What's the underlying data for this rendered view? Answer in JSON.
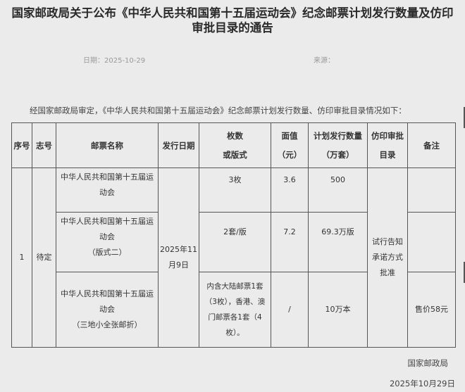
{
  "title": "国家邮政局关于公布《中华人民共和国第十五届运动会》纪念邮票计划发行数量及仿印审批目录的通告",
  "meta": {
    "date_label": "日期：2025-10-29",
    "source_label": "来源："
  },
  "intro": "经国家邮政局审定，《中华人民共和国第十五届运动会》纪念邮票计划发行数量、仿印审批目录情况如下：",
  "table": {
    "headers": [
      "序号",
      "志号",
      "邮票名称",
      "发行日期",
      "枚数\n或版式",
      "面值\n（元）",
      "计划发行数量\n（万套）",
      "仿印审批\n目录",
      "备注"
    ],
    "seq": "1",
    "code": "待定",
    "issue_date": "2025年11月9日",
    "approval": "试行告知承诺方式批准",
    "rows": [
      {
        "name": "中华人民共和国第十五届运动会",
        "count": "3枚",
        "face_value": "3.6",
        "quantity": "500",
        "note": ""
      },
      {
        "name": "中华人民共和国第十五届运动会\n（版式二）",
        "count": "2套/版",
        "face_value": "7.2",
        "quantity": "69.3万版",
        "note": ""
      },
      {
        "name": "中华人民共和国第十五届运动会\n（三地小全张邮折）",
        "count": "内含大陆邮票1套（3枚），香港、澳门邮票各1套（4枚）。",
        "face_value": "/",
        "quantity": "10万本",
        "note": "售价58元"
      }
    ]
  },
  "footer": {
    "issuer": "国家邮政局",
    "date": "2025年10月29日"
  }
}
